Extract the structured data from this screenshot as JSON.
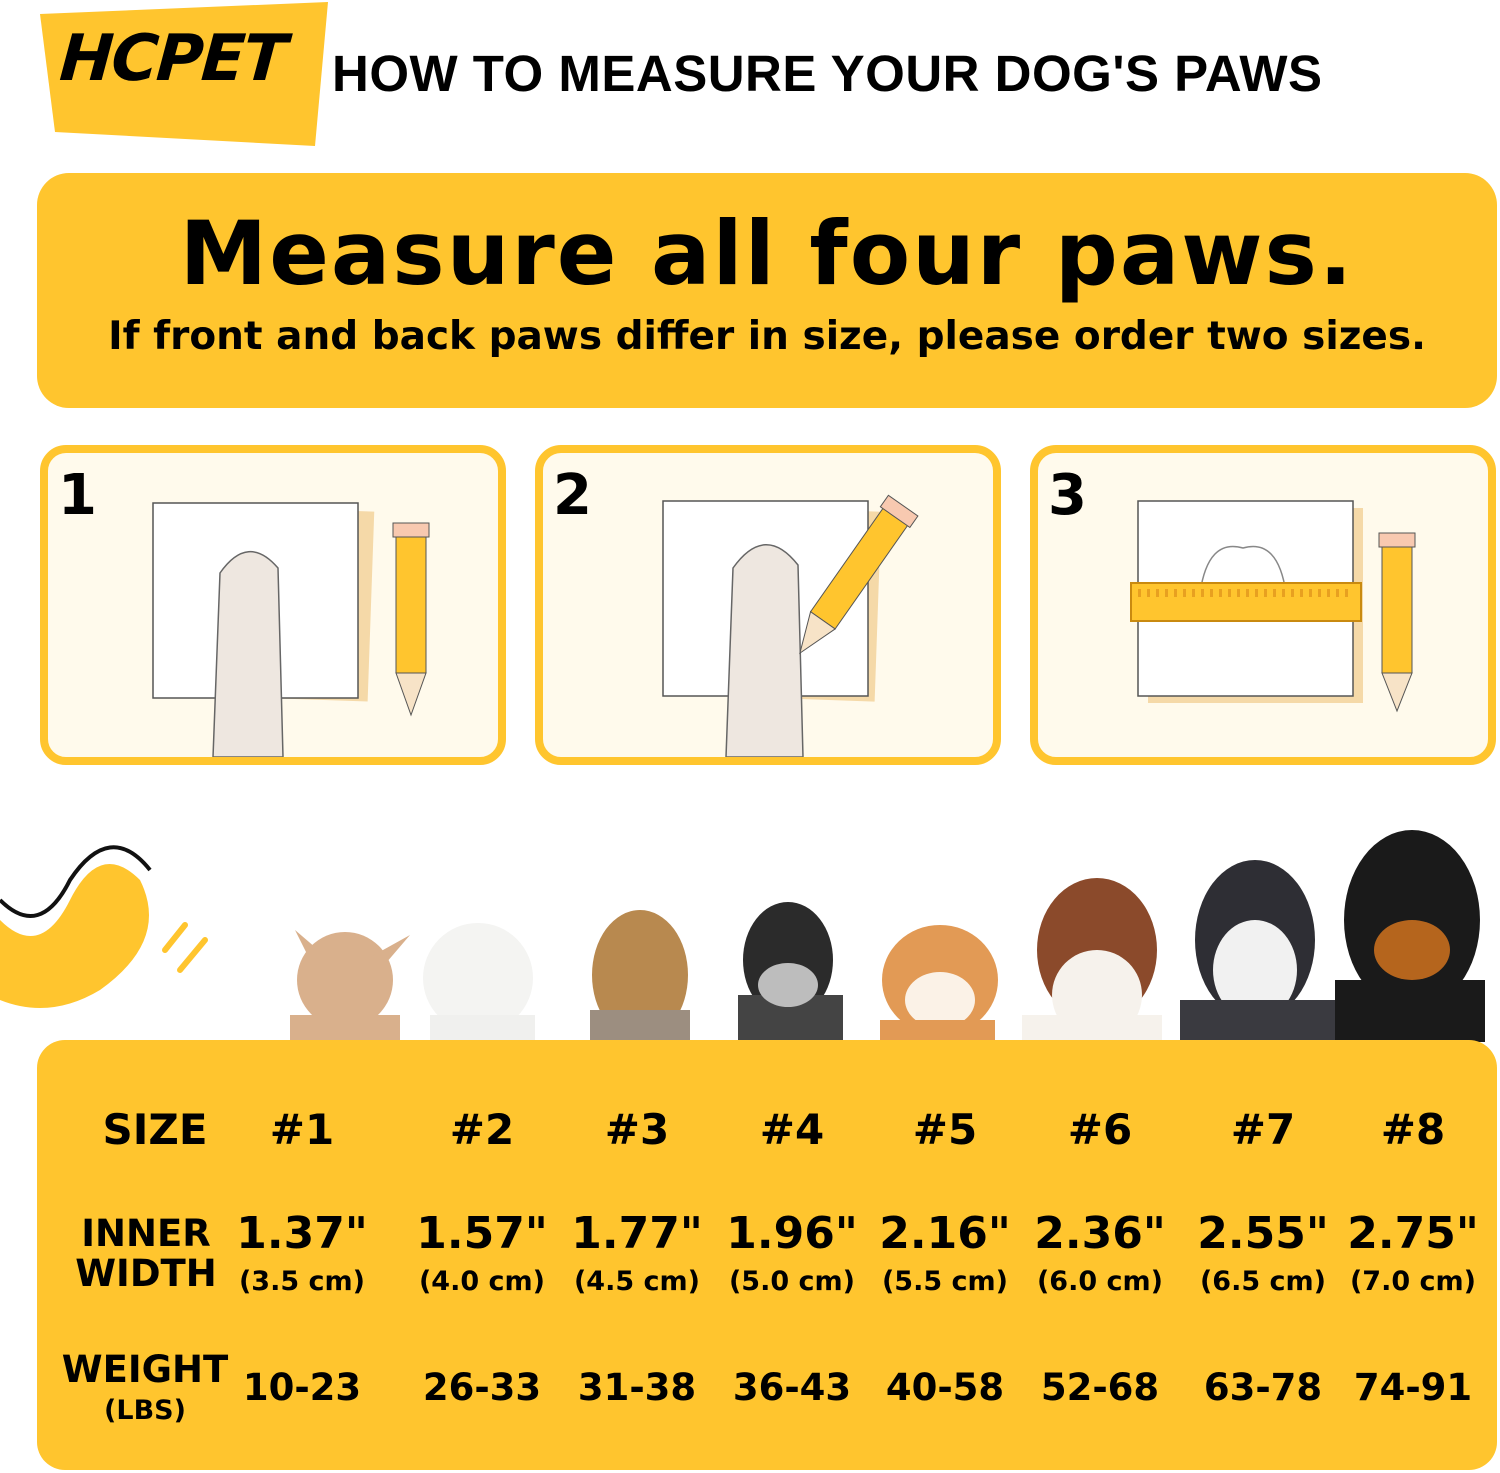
{
  "brand": {
    "logo_text": "HCPET",
    "logo_color": "#FFC52E"
  },
  "title": "HOW TO MEASURE YOUR DOG'S PAWS",
  "banner": {
    "headline": "Measure all four paws.",
    "subline": "If front and back paws differ in size, please order two sizes."
  },
  "steps": [
    {
      "number": "1",
      "icon": "paw-on-paper-icon"
    },
    {
      "number": "2",
      "icon": "trace-paw-pencil-icon"
    },
    {
      "number": "3",
      "icon": "ruler-measure-icon"
    }
  ],
  "dogs": [
    "chihuahua",
    "bichon",
    "yorkshire-terrier",
    "schnauzer",
    "shiba-inu",
    "australian-shepherd",
    "husky",
    "rottweiler"
  ],
  "table": {
    "size_label": "SIZE",
    "width_label_1": "INNER",
    "width_label_2": "WIDTH",
    "weight_label": "WEIGHT",
    "weight_unit": "(LBS)",
    "sizes": [
      {
        "size": "#1",
        "inch": "1.37\"",
        "cm": "(3.5 cm)",
        "weight": "10-23"
      },
      {
        "size": "#2",
        "inch": "1.57\"",
        "cm": "(4.0 cm)",
        "weight": "26-33"
      },
      {
        "size": "#3",
        "inch": "1.77\"",
        "cm": "(4.5 cm)",
        "weight": "31-38"
      },
      {
        "size": "#4",
        "inch": "1.96\"",
        "cm": "(5.0 cm)",
        "weight": "36-43"
      },
      {
        "size": "#5",
        "inch": "2.16\"",
        "cm": "(5.5 cm)",
        "weight": "40-58"
      },
      {
        "size": "#6",
        "inch": "2.36\"",
        "cm": "(6.0 cm)",
        "weight": "52-68"
      },
      {
        "size": "#7",
        "inch": "2.55\"",
        "cm": "(6.5 cm)",
        "weight": "63-78"
      },
      {
        "size": "#8",
        "inch": "2.75\"",
        "cm": "(7.0 cm)",
        "weight": "74-91"
      }
    ]
  },
  "colors": {
    "accent": "#FFC52E",
    "card_bg": "#FFFAEC",
    "text": "#000000"
  }
}
